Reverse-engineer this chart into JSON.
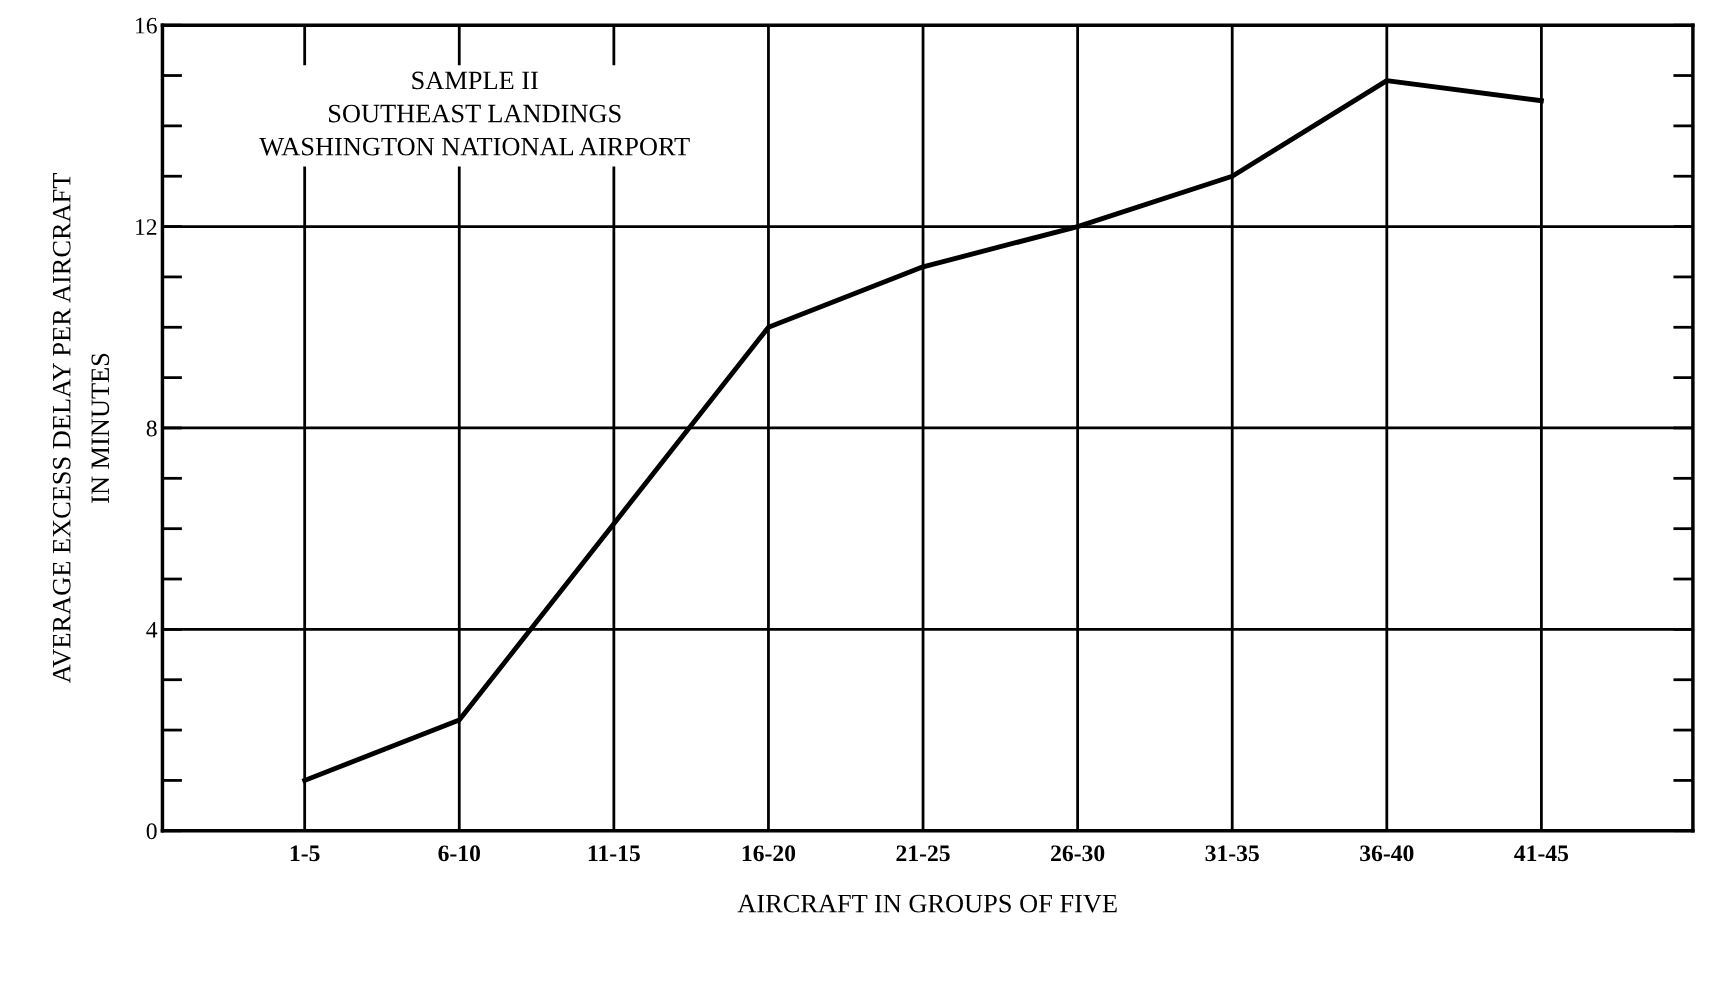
{
  "chart_data": {
    "type": "line",
    "categories": [
      "1-5",
      "6-10",
      "11-15",
      "16-20",
      "21-25",
      "26-30",
      "31-35",
      "36-40",
      "41-45"
    ],
    "values": [
      1.0,
      2.2,
      6.1,
      10.0,
      11.2,
      12.0,
      13.0,
      14.9,
      14.5
    ],
    "color": "#000000",
    "xlabel": "AIRCRAFT IN GROUPS OF FIVE",
    "ylabel": "AVERAGE EXCESS DELAY PER AIRCRAFT\nIN MINUTES",
    "ylim": [
      0,
      16
    ],
    "yticks": [
      0,
      4,
      8,
      12,
      16
    ],
    "grid": true,
    "marker": "none",
    "line_style": "solid",
    "annotations": [
      "SAMPLE II\nSOUTHEAST LANDINGS\nWASHINGTON NATIONAL AIRPORT"
    ]
  }
}
